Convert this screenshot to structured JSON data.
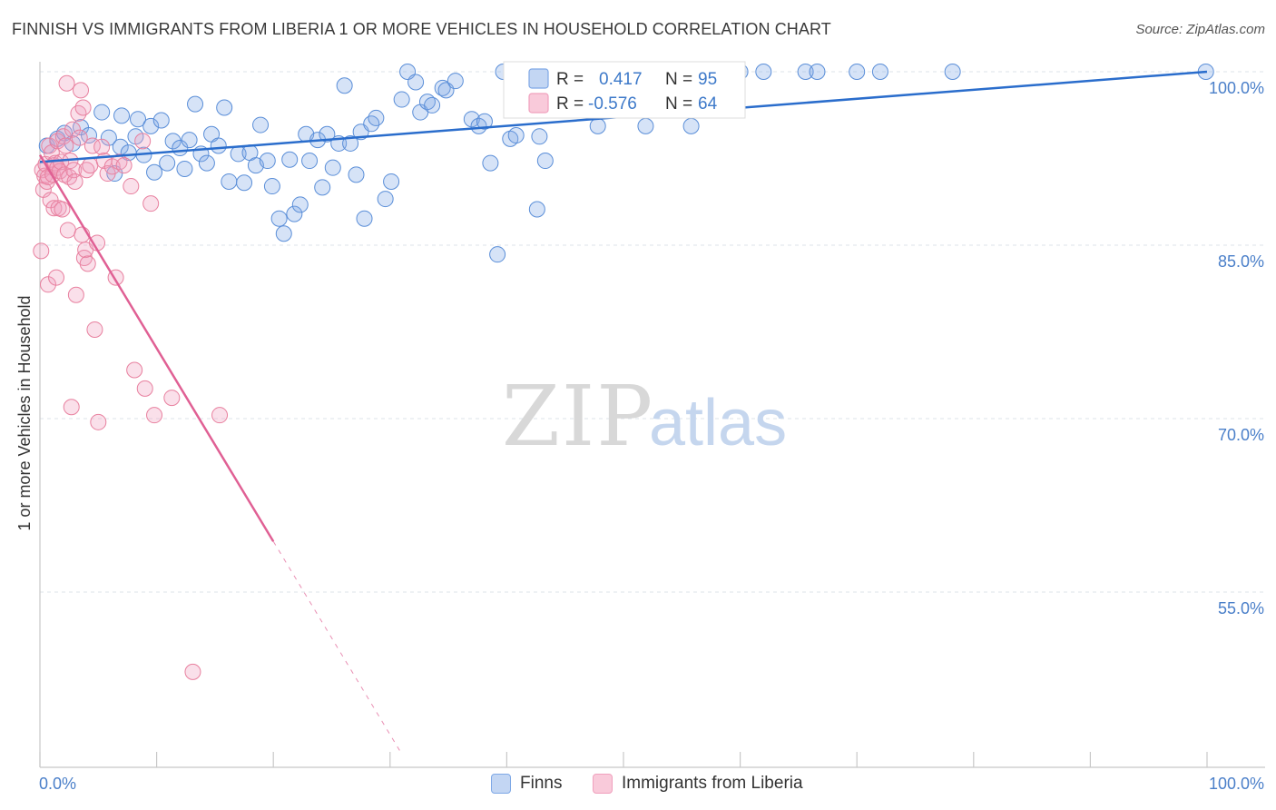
{
  "title": "FINNISH VS IMMIGRANTS FROM LIBERIA 1 OR MORE VEHICLES IN HOUSEHOLD CORRELATION CHART",
  "source": "Source: ZipAtlas.com",
  "watermark": {
    "zip": "ZIP",
    "atlas": "atlas"
  },
  "colors": {
    "blue": "#7ea8e6",
    "blue_line": "#2a6dcc",
    "pink": "#f0a0bd",
    "pink_line": "#e06094",
    "grid": "#dde3ea",
    "tick_text": "#4a7fc9"
  },
  "legend": {
    "items": [
      {
        "r_label": "R =",
        "r_value": "0.417",
        "n_label": "N =",
        "n_value": "95"
      },
      {
        "r_label": "R =",
        "r_value": "-0.576",
        "n_label": "N =",
        "n_value": "64"
      }
    ]
  },
  "bottom_legend": {
    "finns": "Finns",
    "liberia": "Immigrants from Liberia"
  },
  "chart_data": {
    "type": "scatter",
    "title": "FINNISH VS IMMIGRANTS FROM LIBERIA 1 OR MORE VEHICLES IN HOUSEHOLD CORRELATION CHART",
    "xlabel": "",
    "ylabel": "1 or more Vehicles in Household",
    "xlim": [
      0,
      100
    ],
    "ylim": [
      41,
      102
    ],
    "x_tick_labels": [
      "0.0%",
      "100.0%"
    ],
    "y_ticks": [
      55,
      70,
      85,
      100
    ],
    "y_tick_labels": [
      "55.0%",
      "70.0%",
      "85.0%",
      "100.0%"
    ],
    "grid": true,
    "legend_position": "top-center",
    "series": [
      {
        "name": "Finns",
        "color": "#7ea8e6",
        "trend": {
          "x0": 0,
          "y0": 92.2,
          "x1": 100,
          "y1": 100.0,
          "dashed_from": null
        },
        "points": [
          [
            0.6,
            93.6
          ],
          [
            1.5,
            94.2
          ],
          [
            2.1,
            94.7
          ],
          [
            2.8,
            93.8
          ],
          [
            3.5,
            95.2
          ],
          [
            4.2,
            94.5
          ],
          [
            5.3,
            96.5
          ],
          [
            5.9,
            94.3
          ],
          [
            6.4,
            91.2
          ],
          [
            6.9,
            93.5
          ],
          [
            7.0,
            96.2
          ],
          [
            7.6,
            93.0
          ],
          [
            8.2,
            94.4
          ],
          [
            8.4,
            95.9
          ],
          [
            8.9,
            92.8
          ],
          [
            9.5,
            95.3
          ],
          [
            9.8,
            91.3
          ],
          [
            10.4,
            95.8
          ],
          [
            10.9,
            92.1
          ],
          [
            11.4,
            94.0
          ],
          [
            12.0,
            93.4
          ],
          [
            12.4,
            91.6
          ],
          [
            12.8,
            94.1
          ],
          [
            13.3,
            97.2
          ],
          [
            13.8,
            92.9
          ],
          [
            14.3,
            92.1
          ],
          [
            14.7,
            94.6
          ],
          [
            15.3,
            93.6
          ],
          [
            15.8,
            96.9
          ],
          [
            16.2,
            90.5
          ],
          [
            17.0,
            92.9
          ],
          [
            17.5,
            90.4
          ],
          [
            18.0,
            93.0
          ],
          [
            18.5,
            91.9
          ],
          [
            18.9,
            95.4
          ],
          [
            19.5,
            92.3
          ],
          [
            19.9,
            90.1
          ],
          [
            20.5,
            87.3
          ],
          [
            20.9,
            86.0
          ],
          [
            21.4,
            92.4
          ],
          [
            21.8,
            87.7
          ],
          [
            22.3,
            88.5
          ],
          [
            22.8,
            94.6
          ],
          [
            23.1,
            92.3
          ],
          [
            23.8,
            94.1
          ],
          [
            24.2,
            90.0
          ],
          [
            24.6,
            94.6
          ],
          [
            25.1,
            91.7
          ],
          [
            25.6,
            93.8
          ],
          [
            26.1,
            98.8
          ],
          [
            26.6,
            93.8
          ],
          [
            27.1,
            91.1
          ],
          [
            27.5,
            94.8
          ],
          [
            27.8,
            87.3
          ],
          [
            28.4,
            95.5
          ],
          [
            28.8,
            96.0
          ],
          [
            29.6,
            89.0
          ],
          [
            30.1,
            90.5
          ],
          [
            31.0,
            97.6
          ],
          [
            31.5,
            100.0
          ],
          [
            32.2,
            99.1
          ],
          [
            32.6,
            96.5
          ],
          [
            33.2,
            97.4
          ],
          [
            33.6,
            97.1
          ],
          [
            34.5,
            98.6
          ],
          [
            34.8,
            98.4
          ],
          [
            35.6,
            99.2
          ],
          [
            37.0,
            95.9
          ],
          [
            37.6,
            95.3
          ],
          [
            38.1,
            95.7
          ],
          [
            38.6,
            92.1
          ],
          [
            39.2,
            84.2
          ],
          [
            39.7,
            100.0
          ],
          [
            40.3,
            94.2
          ],
          [
            40.8,
            94.5
          ],
          [
            41.4,
            99.1
          ],
          [
            42.6,
            88.1
          ],
          [
            42.8,
            94.4
          ],
          [
            43.3,
            92.3
          ],
          [
            45.6,
            99.9
          ],
          [
            47.8,
            95.3
          ],
          [
            50.0,
            98.4
          ],
          [
            51.9,
            95.3
          ],
          [
            53.3,
            100.0
          ],
          [
            55.8,
            95.3
          ],
          [
            56.2,
            100.0
          ],
          [
            57.5,
            100.0
          ],
          [
            60.0,
            100.0
          ],
          [
            62.0,
            100.0
          ],
          [
            65.6,
            100.0
          ],
          [
            66.6,
            100.0
          ],
          [
            70.0,
            100.0
          ],
          [
            72.0,
            100.0
          ],
          [
            78.2,
            100.0
          ],
          [
            99.9,
            100.0
          ]
        ]
      },
      {
        "name": "Immigrants from Liberia",
        "color": "#f0a0bd",
        "trend": {
          "x0": 0,
          "y0": 92.8,
          "x1": 31.0,
          "y1": 41.0,
          "dashed_from": 20.0
        },
        "points": [
          [
            0.1,
            84.5
          ],
          [
            0.2,
            91.5
          ],
          [
            0.3,
            89.8
          ],
          [
            0.4,
            91.0
          ],
          [
            0.5,
            92.0
          ],
          [
            0.6,
            90.5
          ],
          [
            0.7,
            81.6
          ],
          [
            0.7,
            90.9
          ],
          [
            0.8,
            93.6
          ],
          [
            0.9,
            88.9
          ],
          [
            1.0,
            93.0
          ],
          [
            1.1,
            91.1
          ],
          [
            1.2,
            91.9
          ],
          [
            1.2,
            88.2
          ],
          [
            1.3,
            92.1
          ],
          [
            1.4,
            82.2
          ],
          [
            1.5,
            94.0
          ],
          [
            1.5,
            91.7
          ],
          [
            1.6,
            88.2
          ],
          [
            1.7,
            91.4
          ],
          [
            1.8,
            92.2
          ],
          [
            1.9,
            88.1
          ],
          [
            2.0,
            94.4
          ],
          [
            2.1,
            91.1
          ],
          [
            2.2,
            93.6
          ],
          [
            2.3,
            99.0
          ],
          [
            2.4,
            86.3
          ],
          [
            2.5,
            90.9
          ],
          [
            2.6,
            92.3
          ],
          [
            2.7,
            71.0
          ],
          [
            2.8,
            95.0
          ],
          [
            2.9,
            91.5
          ],
          [
            3.0,
            90.5
          ],
          [
            3.1,
            80.7
          ],
          [
            3.3,
            96.4
          ],
          [
            3.4,
            94.3
          ],
          [
            3.5,
            98.4
          ],
          [
            3.6,
            85.9
          ],
          [
            3.7,
            96.9
          ],
          [
            3.8,
            83.9
          ],
          [
            3.9,
            84.6
          ],
          [
            4.0,
            91.5
          ],
          [
            4.1,
            83.4
          ],
          [
            4.3,
            91.9
          ],
          [
            4.5,
            93.6
          ],
          [
            4.7,
            77.7
          ],
          [
            4.9,
            85.2
          ],
          [
            5.0,
            69.7
          ],
          [
            5.3,
            93.5
          ],
          [
            5.5,
            92.3
          ],
          [
            5.8,
            91.2
          ],
          [
            6.2,
            91.8
          ],
          [
            6.5,
            82.2
          ],
          [
            6.8,
            92.2
          ],
          [
            7.2,
            91.9
          ],
          [
            7.8,
            90.1
          ],
          [
            8.1,
            74.2
          ],
          [
            8.8,
            94.0
          ],
          [
            9.0,
            72.6
          ],
          [
            9.5,
            88.6
          ],
          [
            9.8,
            70.3
          ],
          [
            11.3,
            71.8
          ],
          [
            13.1,
            48.1
          ],
          [
            15.4,
            70.3
          ]
        ]
      }
    ]
  }
}
